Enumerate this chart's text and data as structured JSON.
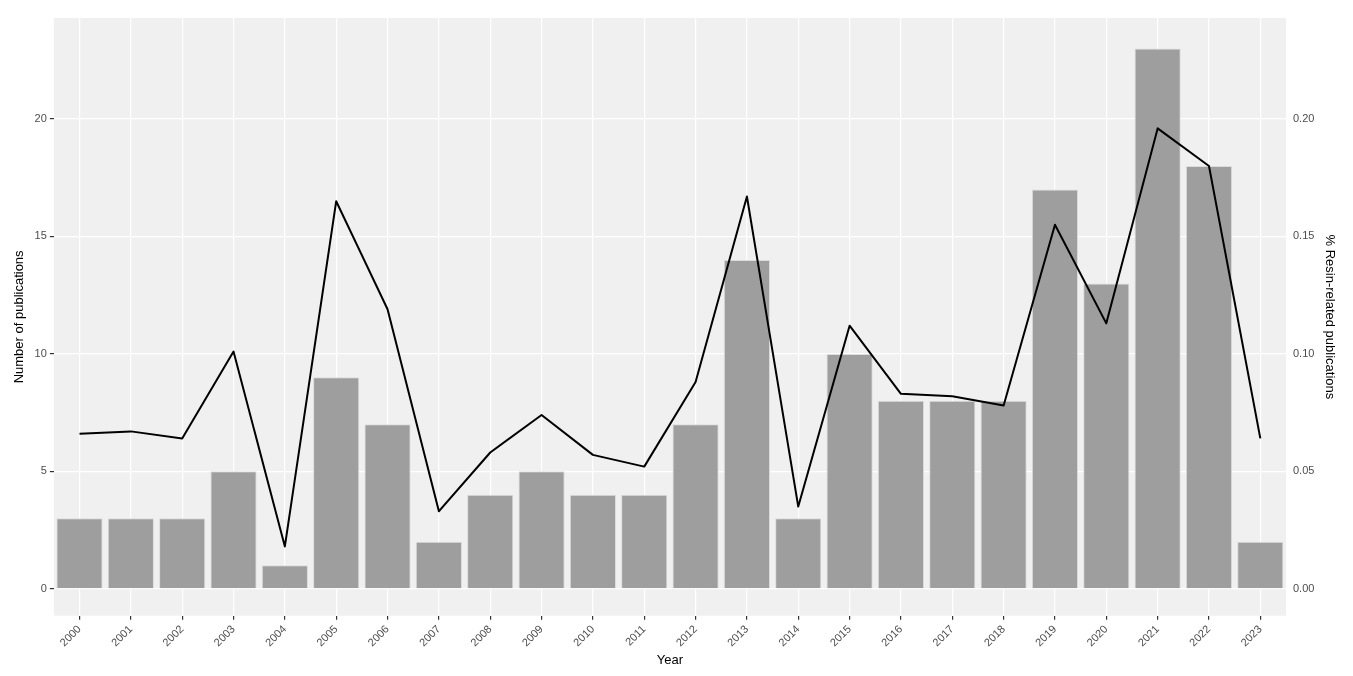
{
  "chart_data": {
    "type": "bar",
    "xlabel": "Year",
    "ylabel": "Number of publications",
    "y2label": "% Resin-related publications",
    "categories": [
      "2000",
      "2001",
      "2002",
      "2003",
      "2004",
      "2005",
      "2006",
      "2007",
      "2008",
      "2009",
      "2010",
      "2011",
      "2012",
      "2013",
      "2014",
      "2015",
      "2016",
      "2017",
      "2018",
      "2019",
      "2020",
      "2021",
      "2022",
      "2023"
    ],
    "series": [
      {
        "color": "#9e9e9e",
        "values": [
          3,
          3,
          3,
          5,
          1,
          9,
          7,
          2,
          4,
          5,
          4,
          4,
          7,
          14,
          3,
          10,
          8,
          8,
          8,
          17,
          13,
          23,
          18,
          2
        ]
      },
      {
        "type": "line",
        "axis": "y2",
        "color": "#000000",
        "values": [
          0.066,
          0.067,
          0.064,
          0.101,
          0.018,
          0.165,
          0.119,
          0.033,
          0.058,
          0.074,
          0.057,
          0.052,
          0.088,
          0.167,
          0.035,
          0.112,
          0.083,
          0.082,
          0.078,
          0.155,
          0.113,
          0.196,
          0.18,
          0.064
        ]
      }
    ],
    "ylim": [
      -1.15,
      24.3
    ],
    "yticks": [
      0,
      5,
      10,
      15,
      20
    ],
    "y2lim": [
      -0.0115,
      0.243
    ],
    "y2ticks": [
      {
        "value": 0,
        "label": "0.00"
      },
      {
        "value": 0.05,
        "label": "0.05"
      },
      {
        "value": 0.1,
        "label": "0.10"
      },
      {
        "value": 0.15,
        "label": "0.15"
      },
      {
        "value": 0.2,
        "label": "0.20"
      }
    ],
    "grid": true,
    "legend": false,
    "marker": "none",
    "line_style": "solid"
  }
}
